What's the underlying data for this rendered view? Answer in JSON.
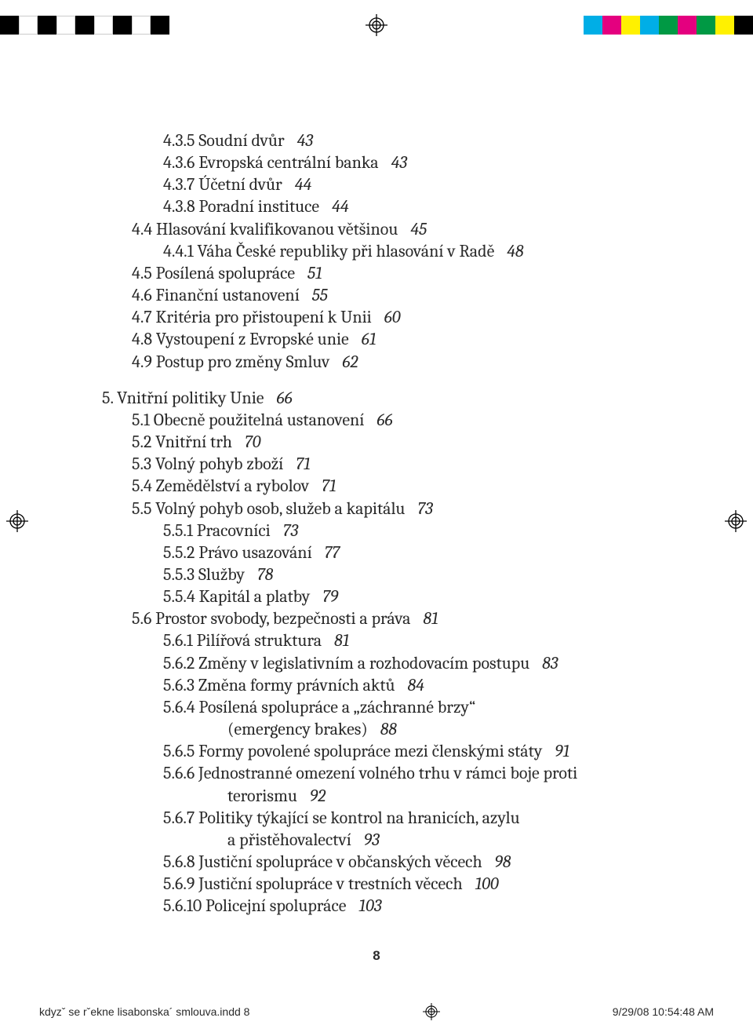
{
  "colorbar": {
    "left_colors": [
      "#000000",
      "#ffffff",
      "#000000",
      "#ffffff",
      "#000000",
      "#ffffff",
      "#000000",
      "#ffffff",
      "#000000"
    ],
    "right_colors": [
      "#00aee6",
      "#e4007f",
      "#fff100",
      "#00aee6",
      "#009944",
      "#e4007f",
      "#009944",
      "#fff100",
      "#000000"
    ]
  },
  "toc": [
    {
      "level": 3,
      "title": "4.3.5 Soudní dvůr",
      "page": "43"
    },
    {
      "level": 3,
      "title": "4.3.6 Evropská centrální banka",
      "page": "43"
    },
    {
      "level": 3,
      "title": "4.3.7 Účetní dvůr",
      "page": "44"
    },
    {
      "level": 3,
      "title": "4.3.8 Poradní instituce",
      "page": "44"
    },
    {
      "level": 2,
      "title": "4.4 Hlasování kvalifikovanou většinou",
      "page": "45"
    },
    {
      "level": 3,
      "title": "4.4.1 Váha České republiky při hlasování v Radě",
      "page": "48"
    },
    {
      "level": 2,
      "title": "4.5 Posílená spolupráce",
      "page": "51"
    },
    {
      "level": 2,
      "title": "4.6 Finanční ustanovení",
      "page": "55"
    },
    {
      "level": 2,
      "title": "4.7 Kritéria pro přistoupení k Unii",
      "page": "60"
    },
    {
      "level": 2,
      "title": "4.8 Vystoupení z Evropské unie",
      "page": "61"
    },
    {
      "level": 2,
      "title": "4.9 Postup pro změny Smluv",
      "page": "62"
    },
    {
      "gap": true
    },
    {
      "level": 1,
      "title": "5. Vnitřní politiky Unie",
      "page": "66"
    },
    {
      "level": 2,
      "title": "5.1 Obecně použitelná ustanovení",
      "page": "66"
    },
    {
      "level": 2,
      "title": "5.2 Vnitřní trh",
      "page": "70"
    },
    {
      "level": 2,
      "title": "5.3 Volný pohyb zboží",
      "page": "71"
    },
    {
      "level": 2,
      "title": "5.4 Zemědělství a rybolov",
      "page": "71"
    },
    {
      "level": 2,
      "title": "5.5 Volný pohyb osob, služeb a kapitálu",
      "page": "73"
    },
    {
      "level": 3,
      "title": "5.5.1 Pracovníci",
      "page": "73"
    },
    {
      "level": 3,
      "title": "5.5.2 Právo usazování",
      "page": "77"
    },
    {
      "level": 3,
      "title": "5.5.3 Služby",
      "page": "78"
    },
    {
      "level": 3,
      "title": "5.5.4 Kapitál a platby",
      "page": "79"
    },
    {
      "level": 2,
      "title": "5.6 Prostor svobody, bezpečnosti a práva",
      "page": "81"
    },
    {
      "level": 3,
      "title": "5.6.1 Pilířová struktura",
      "page": "81"
    },
    {
      "level": 3,
      "title": "5.6.2 Změny v legislativním a rozhodovacím postupu",
      "page": "83"
    },
    {
      "level": 3,
      "title": "5.6.3 Změna formy právních aktů",
      "page": "84"
    },
    {
      "level": 3,
      "title": "5.6.4 Posílená spolupráce a „záchranné brzy“",
      "page": ""
    },
    {
      "level": 4,
      "title": "(emergency brakes)",
      "page": "88",
      "continuation": true
    },
    {
      "level": 3,
      "title": "5.6.5 Formy povolené spolupráce mezi členskými státy",
      "page": "91"
    },
    {
      "level": 3,
      "title": "5.6.6 Jednostranné omezení volného trhu v rámci boje proti",
      "page": ""
    },
    {
      "level": 4,
      "title": "terorismu",
      "page": "92",
      "continuation": true
    },
    {
      "level": 3,
      "title": "5.6.7 Politiky týkající se kontrol na hranicích, azylu",
      "page": ""
    },
    {
      "level": 4,
      "title": "a přistěhovalectví",
      "page": "93",
      "continuation": true
    },
    {
      "level": 3,
      "title": "5.6.8 Justiční spolupráce v občanských věcech",
      "page": "98"
    },
    {
      "level": 3,
      "title": "5.6.9 Justiční spolupráce v trestních věcech",
      "page": "100"
    },
    {
      "level": 3,
      "title": "5.6.10 Policejní spolupráce",
      "page": "103"
    }
  ],
  "page_number": "8",
  "footer": {
    "filename": "kdyzˇ se rˇekne lisabonska´ smlouva.indd   8",
    "timestamp": "9/29/08   10:54:48 AM"
  }
}
